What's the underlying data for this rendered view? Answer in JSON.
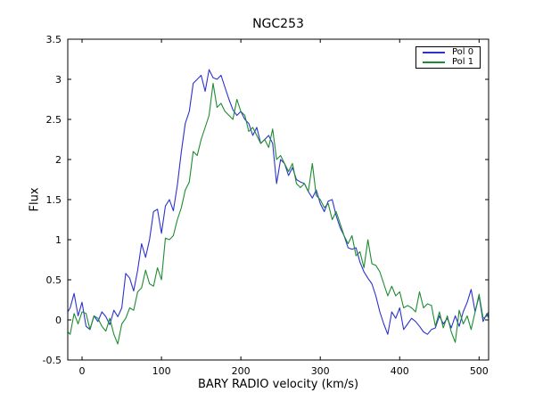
{
  "chart_data": {
    "type": "line",
    "title": "NGC253",
    "xlabel": "BARY RADIO velocity (km/s)",
    "ylabel": "Flux",
    "xlim": [
      -18,
      512
    ],
    "ylim": [
      -0.5,
      3.5
    ],
    "grid": false,
    "legend_position": "upper right",
    "background": "#ffffff",
    "axis_color": "#000000",
    "xticks": {
      "values": [
        0,
        100,
        200,
        300,
        400,
        500
      ],
      "labels": [
        "0",
        "100",
        "200",
        "300",
        "400",
        "500"
      ]
    },
    "yticks": {
      "values": [
        -0.5,
        0,
        0.5,
        1,
        1.5,
        2,
        2.5,
        3,
        3.5
      ],
      "labels": [
        "-0.5",
        "0",
        "0.5",
        "1",
        "1.5",
        "2",
        "2.5",
        "3",
        "3.5"
      ]
    },
    "x": [
      -18,
      -15,
      -10,
      -5,
      0,
      5,
      10,
      15,
      20,
      25,
      30,
      35,
      40,
      45,
      50,
      55,
      60,
      65,
      70,
      75,
      80,
      85,
      90,
      95,
      100,
      105,
      110,
      115,
      120,
      125,
      130,
      135,
      140,
      145,
      150,
      155,
      160,
      165,
      170,
      175,
      180,
      185,
      190,
      195,
      200,
      205,
      210,
      215,
      220,
      225,
      230,
      235,
      240,
      245,
      250,
      255,
      260,
      265,
      270,
      275,
      280,
      285,
      290,
      295,
      300,
      305,
      310,
      315,
      320,
      325,
      330,
      335,
      340,
      345,
      350,
      355,
      360,
      365,
      370,
      375,
      380,
      385,
      390,
      395,
      400,
      405,
      410,
      415,
      420,
      425,
      430,
      435,
      440,
      445,
      450,
      455,
      460,
      465,
      470,
      475,
      480,
      485,
      490,
      495,
      500,
      505,
      510,
      512
    ],
    "series": [
      {
        "name": "Pol 0",
        "color": "#2d32cf",
        "values": [
          0.1,
          0.15,
          0.33,
          0.05,
          0.22,
          -0.08,
          -0.12,
          0.05,
          -0.02,
          0.1,
          0.04,
          -0.06,
          0.12,
          0.04,
          0.15,
          0.58,
          0.52,
          0.36,
          0.62,
          0.95,
          0.78,
          1.0,
          1.35,
          1.38,
          1.08,
          1.42,
          1.5,
          1.36,
          1.68,
          2.1,
          2.45,
          2.6,
          2.95,
          3.0,
          3.05,
          2.85,
          3.12,
          3.02,
          3.0,
          3.05,
          2.9,
          2.75,
          2.62,
          2.55,
          2.6,
          2.5,
          2.45,
          2.3,
          2.4,
          2.2,
          2.25,
          2.3,
          2.2,
          1.7,
          2.0,
          1.95,
          1.8,
          1.9,
          1.75,
          1.72,
          1.7,
          1.6,
          1.52,
          1.62,
          1.45,
          1.35,
          1.48,
          1.5,
          1.3,
          1.15,
          1.05,
          0.9,
          0.88,
          0.9,
          0.72,
          0.6,
          0.52,
          0.45,
          0.3,
          0.1,
          -0.05,
          -0.18,
          0.1,
          0.02,
          0.15,
          -0.12,
          -0.05,
          0.02,
          -0.02,
          -0.08,
          -0.15,
          -0.18,
          -0.12,
          -0.1,
          0.05,
          -0.05,
          0.02,
          -0.1,
          0.05,
          -0.08,
          0.1,
          0.22,
          0.38,
          0.1,
          0.3,
          -0.02,
          0.08,
          0.02
        ]
      },
      {
        "name": "Pol 1",
        "color": "#1e8c32",
        "values": [
          -0.15,
          -0.18,
          0.08,
          -0.05,
          0.1,
          0.08,
          -0.12,
          0.05,
          0.02,
          -0.08,
          -0.14,
          0.02,
          -0.18,
          -0.3,
          -0.05,
          0.02,
          0.15,
          0.12,
          0.35,
          0.4,
          0.62,
          0.45,
          0.42,
          0.65,
          0.5,
          1.02,
          1.0,
          1.05,
          1.25,
          1.4,
          1.62,
          1.72,
          2.1,
          2.05,
          2.25,
          2.4,
          2.55,
          2.95,
          2.65,
          2.7,
          2.6,
          2.55,
          2.5,
          2.75,
          2.6,
          2.55,
          2.35,
          2.4,
          2.3,
          2.2,
          2.25,
          2.15,
          2.38,
          2.0,
          2.05,
          1.95,
          1.85,
          1.95,
          1.7,
          1.65,
          1.7,
          1.6,
          1.95,
          1.55,
          1.5,
          1.4,
          1.45,
          1.25,
          1.35,
          1.2,
          1.05,
          0.95,
          1.05,
          0.8,
          0.85,
          0.65,
          1.0,
          0.7,
          0.68,
          0.6,
          0.45,
          0.3,
          0.42,
          0.3,
          0.35,
          0.15,
          0.18,
          0.15,
          0.1,
          0.35,
          0.15,
          0.2,
          0.18,
          -0.08,
          0.1,
          -0.1,
          0.05,
          -0.15,
          -0.28,
          0.12,
          -0.05,
          0.05,
          -0.12,
          0.1,
          0.32,
          0.02,
          0.05,
          0.1
        ]
      }
    ]
  }
}
